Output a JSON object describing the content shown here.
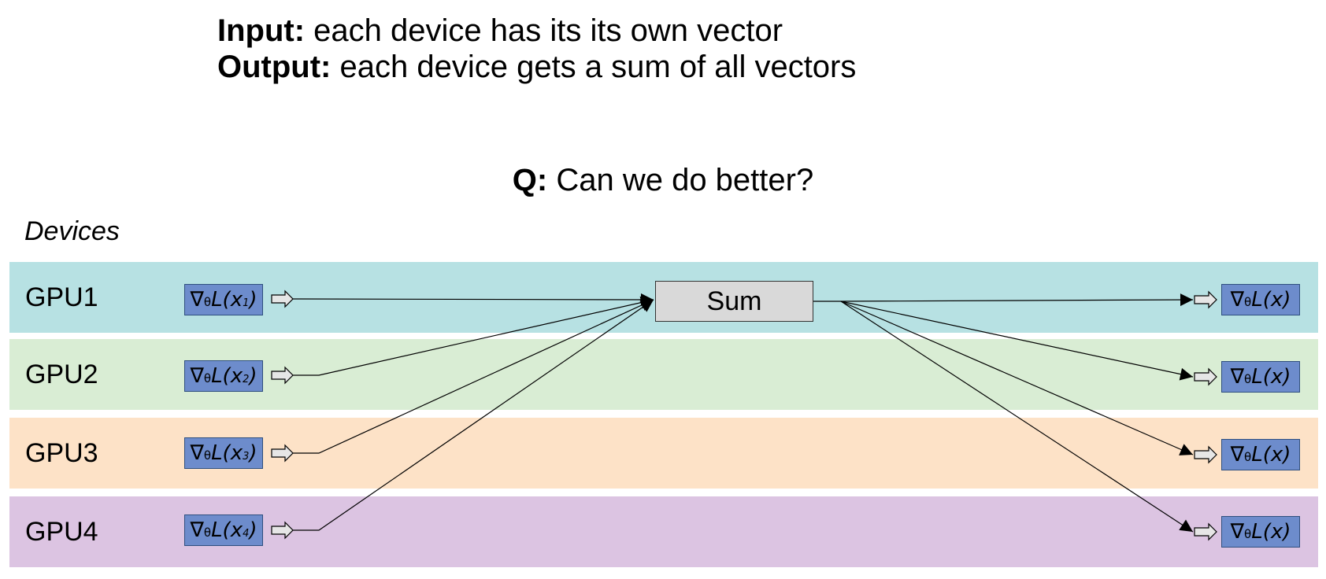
{
  "header": {
    "input_label": "Input:",
    "input_text": " each device has its its own vector",
    "output_label": "Output:",
    "output_text": " each device gets a sum of all vectors"
  },
  "question": {
    "label": "Q:",
    "text": " Can we do better?"
  },
  "devices_label": "Devices",
  "sum_label": "Sum",
  "lanes": [
    {
      "label": "GPU1",
      "color": "#b7e1e3",
      "input": {
        "sym": "∇",
        "sub": "θ",
        "fn": "L(x",
        "idx": "1",
        "close": ")"
      },
      "output": {
        "sym": "∇",
        "sub": "θ",
        "fn": "L(x)"
      }
    },
    {
      "label": "GPU2",
      "color": "#d9edd4",
      "input": {
        "sym": "∇",
        "sub": "θ",
        "fn": "L(x",
        "idx": "2",
        "close": ")"
      },
      "output": {
        "sym": "∇",
        "sub": "θ",
        "fn": "L(x)"
      }
    },
    {
      "label": "GPU3",
      "color": "#fde2c7",
      "input": {
        "sym": "∇",
        "sub": "θ",
        "fn": "L(x",
        "idx": "3",
        "close": ")"
      },
      "output": {
        "sym": "∇",
        "sub": "θ",
        "fn": "L(x)"
      }
    },
    {
      "label": "GPU4",
      "color": "#dcc4e2",
      "input": {
        "sym": "∇",
        "sub": "θ",
        "fn": "L(x",
        "idx": "4",
        "close": ")"
      },
      "output": {
        "sym": "∇",
        "sub": "θ",
        "fn": "L(x)"
      }
    }
  ]
}
